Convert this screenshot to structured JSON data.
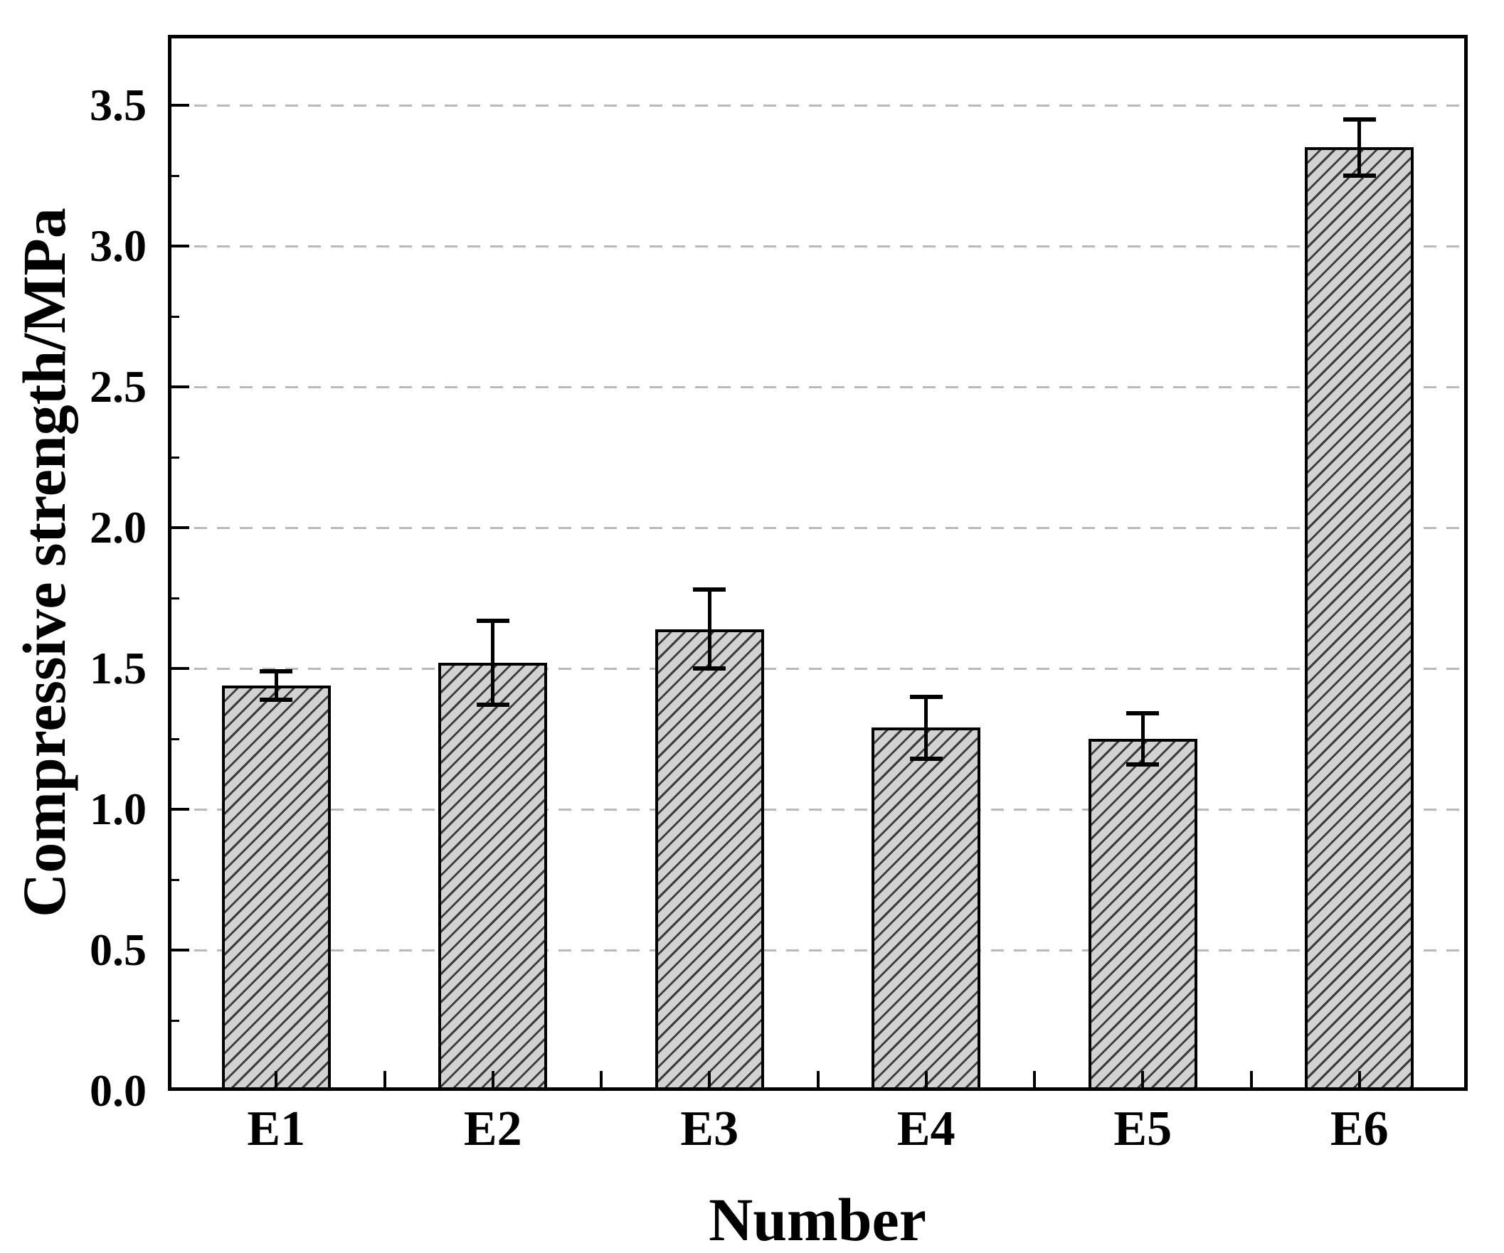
{
  "figure": {
    "background": "#ffffff",
    "xlabel": "Number",
    "ylabel": "Compressive strength/MPa"
  },
  "chart_data": {
    "type": "bar",
    "title": "",
    "xlabel": "Number",
    "ylabel": "Compressive strength/MPa",
    "categories": [
      "E1",
      "E2",
      "E3",
      "E4",
      "E5",
      "E6"
    ],
    "values": [
      1.44,
      1.52,
      1.64,
      1.29,
      1.25,
      3.35
    ],
    "error_bars": [
      0.05,
      0.15,
      0.14,
      0.11,
      0.09,
      0.1
    ],
    "ylim": [
      0,
      3.75
    ],
    "yticks": [
      0.0,
      0.5,
      1.0,
      1.5,
      2.0,
      2.5,
      3.0,
      3.5
    ],
    "ytick_labels": [
      "0.0",
      "0.5",
      "1.0",
      "1.5",
      "2.0",
      "2.5",
      "3.0",
      "3.5"
    ],
    "minor_ytick_step": 0.25,
    "grid": "horizontal-dashed-at-major-ticks",
    "legend": "none",
    "colors": {
      "bar_fill": "#d2d2d2",
      "bar_hatch": "#3c3c3c",
      "bar_edge": "#000000",
      "gridline": "#b9b9b9",
      "axis": "#000000",
      "text": "#000000"
    },
    "bar_hatch_style": "diagonal-forward-slash"
  }
}
